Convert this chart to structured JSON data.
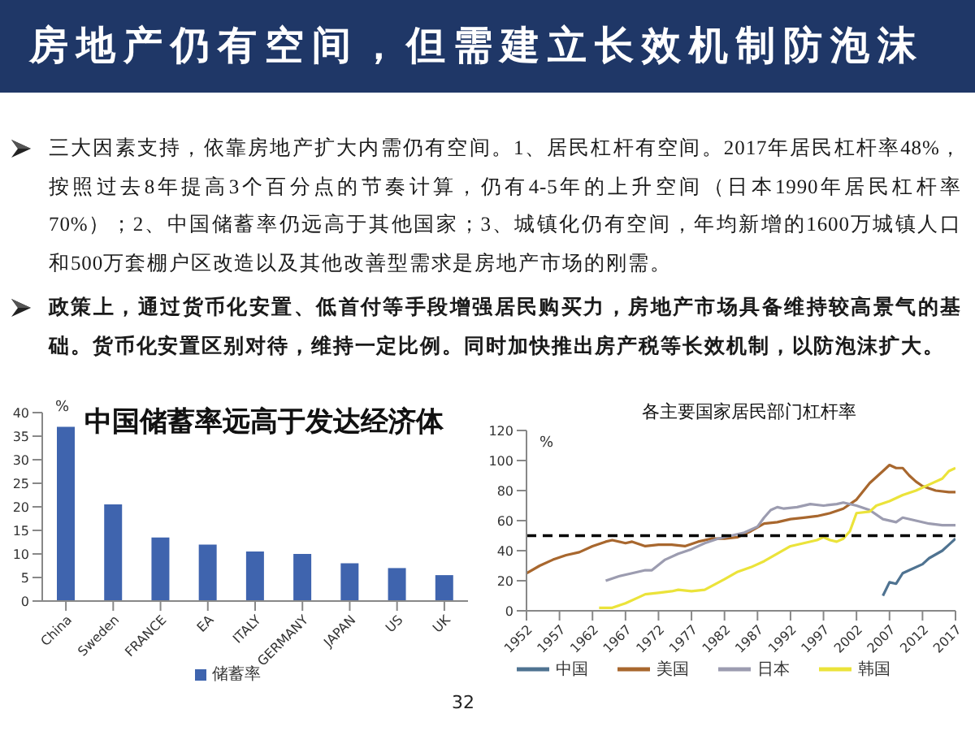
{
  "chart_data": [
    {
      "type": "other",
      "title": "房地产仍有空间，但需建立长效机制防泡沫",
      "annotations": [
        "三大因素支持，依靠房地产扩大内需仍有空间。1、居民杠杆有空间。2017年居民杠杆率48%，按照过去8年提高3个百分点的节奏计算，仍有4-5年的上升空间（日本1990年居民杠杆率70%）；2、中国储蓄率仍远高于其他国家；3、城镇化仍有空间，年均新增的1600万城镇人口和500万套棚户区改造以及其他改善型需求是房地产市场的刚需。",
        "政策上，通过货币化安置、低首付等手段增强居民购买力，房地产市场具备维持较高景气的基础。货币化安置区别对待，维持一定比例。同时加快推出房产税等长效机制，以防泡沫扩大。",
        "32"
      ]
    },
    {
      "type": "bar",
      "title": "中国储蓄率远高于发达经济体",
      "ylabel": "%",
      "categories": [
        "China",
        "Sweden",
        "FRANCE",
        "EA",
        "ITALY",
        "GERMANY",
        "JAPAN",
        "US",
        "UK"
      ],
      "series": [
        {
          "name": "储蓄率",
          "color": "#3f64ae",
          "values": [
            37,
            20.5,
            13.5,
            12,
            10.5,
            10,
            8,
            7,
            5.5
          ]
        }
      ],
      "ylim": [
        0,
        40
      ],
      "yticks": [
        0,
        5,
        10,
        15,
        20,
        25,
        30,
        35,
        40
      ],
      "legend": "bottom"
    },
    {
      "type": "line",
      "title": "各主要国家居民部门杠杆率",
      "ylabel": "%",
      "xlim": [
        1952,
        2017
      ],
      "xticks": [
        1952,
        1957,
        1962,
        1967,
        1972,
        1977,
        1982,
        1987,
        1992,
        1997,
        2002,
        2007,
        2012,
        2017
      ],
      "ylim": [
        0,
        120
      ],
      "yticks": [
        0,
        20,
        40,
        60,
        80,
        100,
        120
      ],
      "legend": "bottom",
      "marker": "none",
      "line_style": "solid",
      "ref_lines": [
        {
          "axis": "y",
          "value": 50,
          "color": "#000000",
          "line_style": "dashed"
        }
      ],
      "series": [
        {
          "name": "中国",
          "color": "#4f7391",
          "x": [
            2006,
            2007,
            2008,
            2009,
            2010,
            2012,
            2013,
            2015,
            2016,
            2017
          ],
          "values": [
            10,
            19,
            18,
            25,
            27,
            31,
            35,
            40,
            44,
            48
          ]
        },
        {
          "name": "美国",
          "color": "#a8672e",
          "x": [
            1952,
            1954,
            1956,
            1958,
            1960,
            1962,
            1964,
            1965,
            1967,
            1968,
            1970,
            1972,
            1974,
            1976,
            1978,
            1980,
            1982,
            1984,
            1986,
            1988,
            1990,
            1992,
            1994,
            1996,
            1998,
            2000,
            2002,
            2004,
            2006,
            2007,
            2008,
            2009,
            2010,
            2011,
            2012,
            2014,
            2016,
            2017
          ],
          "values": [
            25,
            30,
            34,
            37,
            39,
            43,
            46,
            47,
            45,
            46,
            43,
            44,
            44,
            43,
            46,
            48,
            48,
            49,
            53,
            58,
            59,
            61,
            62,
            63,
            65,
            68,
            74,
            85,
            93,
            97,
            95,
            95,
            90,
            86,
            83,
            80,
            79,
            79
          ]
        },
        {
          "name": "日本",
          "color": "#9c9cb0",
          "x": [
            1964,
            1966,
            1968,
            1970,
            1971,
            1973,
            1975,
            1977,
            1979,
            1981,
            1983,
            1985,
            1987,
            1988,
            1989,
            1990,
            1991,
            1993,
            1995,
            1997,
            1999,
            2000,
            2002,
            2004,
            2006,
            2008,
            2009,
            2011,
            2013,
            2015,
            2017
          ],
          "values": [
            20,
            23,
            25,
            27,
            27,
            34,
            38,
            41,
            45,
            48,
            50,
            52,
            56,
            62,
            67,
            69,
            68,
            69,
            71,
            70,
            71,
            72,
            70,
            67,
            61,
            59,
            62,
            60,
            58,
            57,
            57
          ]
        },
        {
          "name": "韩国",
          "color": "#ebe33a",
          "x": [
            1963,
            1965,
            1967,
            1969,
            1970,
            1972,
            1974,
            1975,
            1977,
            1979,
            1982,
            1984,
            1986,
            1988,
            1990,
            1992,
            1994,
            1996,
            1997,
            1998,
            1999,
            2000,
            2001,
            2002,
            2004,
            2005,
            2007,
            2009,
            2011,
            2013,
            2015,
            2016,
            2017
          ],
          "values": [
            2,
            2,
            5,
            9,
            11,
            12,
            13,
            14,
            13,
            14,
            21,
            26,
            29,
            33,
            38,
            43,
            45,
            47,
            49,
            47,
            46,
            48,
            53,
            65,
            66,
            70,
            73,
            77,
            80,
            84,
            88,
            93,
            95
          ]
        }
      ]
    }
  ]
}
